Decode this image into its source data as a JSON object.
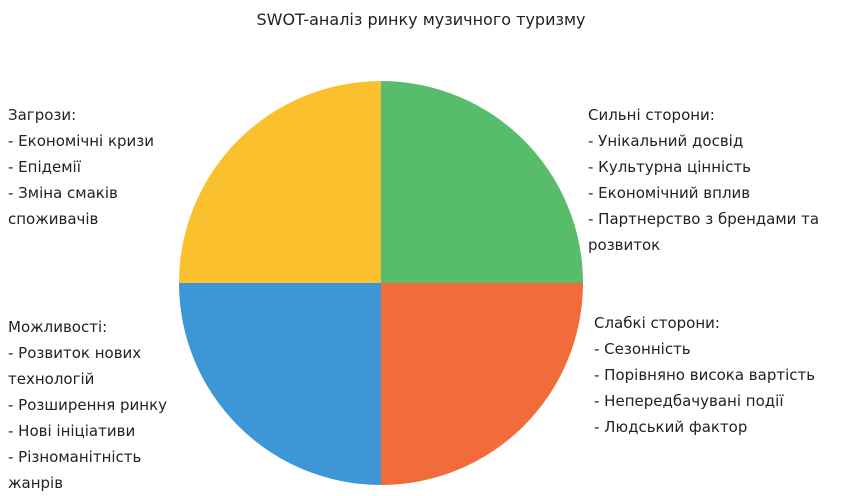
{
  "title": "SWOT-аналіз ринку музичного туризму",
  "quadrants": [
    {
      "title": "Сильні сторони:",
      "items": [
        "- Унікальний досвід",
        "- Культурна цінність",
        "- Економічний вплив",
        "- Партнерство з брендами та розвиток"
      ]
    },
    {
      "title": "Слабкі сторони:",
      "items": [
        "- Сезонність",
        "- Порівняно висока вартість",
        "- Непередбачувані події",
        "- Людський фактор"
      ]
    },
    {
      "title": "Можливості:",
      "items": [
        "- Розвиток нових технологій",
        "- Розширення ринку",
        "- Нові ініціативи",
        "- Різноманітність жанрів"
      ]
    },
    {
      "title": "Загрози:",
      "items": [
        "- Економічні кризи",
        "- Епідемії",
        "- Зміна смаків споживачів"
      ]
    }
  ]
}
